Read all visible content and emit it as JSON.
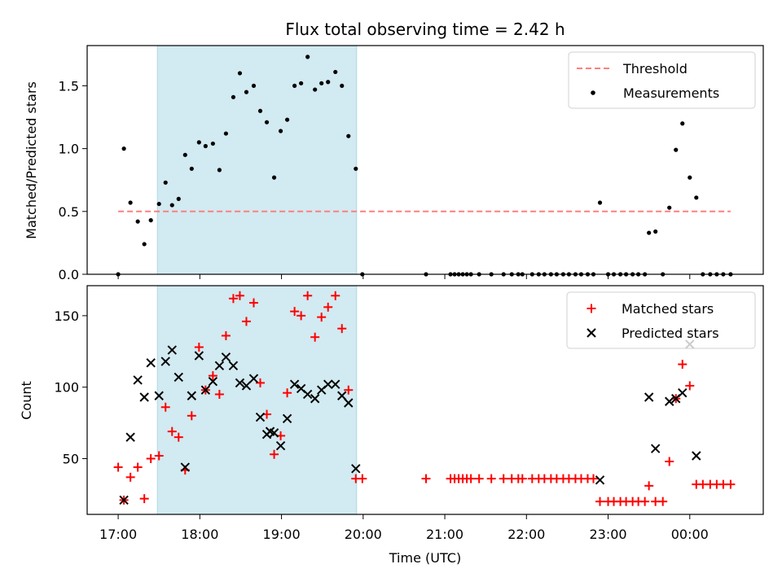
{
  "title": "Flux total observing time = 2.42 h",
  "colors": {
    "threshold": "#ff7f7f",
    "measurement": "#000000",
    "matched": "#ff0000",
    "predicted": "#000000",
    "span": "#add8e6"
  },
  "chart_data": [
    {
      "type": "scatter",
      "ylabel": "Matched/Predicted stars",
      "xlim": [
        16.62,
        24.9
      ],
      "ylim": [
        0,
        1.82
      ],
      "yticks": [
        0.0,
        0.5,
        1.0,
        1.5
      ],
      "ytick_labels": [
        "0.0",
        "0.5",
        "1.0",
        "1.5"
      ],
      "highlight_span": [
        17.48,
        19.92
      ],
      "threshold": {
        "label": "Threshold",
        "y": 0.5,
        "x": [
          17.0,
          24.5
        ]
      },
      "legend": [
        "Threshold",
        "Measurements"
      ],
      "series": [
        {
          "name": "Measurements",
          "x": [
            17.0,
            17.07,
            17.15,
            17.24,
            17.32,
            17.4,
            17.5,
            17.58,
            17.66,
            17.74,
            17.82,
            17.9,
            17.99,
            18.07,
            18.16,
            18.24,
            18.32,
            18.41,
            18.49,
            18.57,
            18.66,
            18.74,
            18.82,
            18.91,
            18.99,
            19.07,
            19.16,
            19.24,
            19.32,
            19.41,
            19.49,
            19.57,
            19.66,
            19.74,
            19.82,
            19.91,
            19.99,
            20.77,
            21.07,
            21.12,
            21.17,
            21.22,
            21.27,
            21.32,
            21.42,
            21.57,
            21.72,
            21.82,
            21.9,
            21.95,
            22.07,
            22.15,
            22.22,
            22.3,
            22.37,
            22.45,
            22.52,
            22.6,
            22.67,
            22.75,
            22.82,
            22.9,
            23.0,
            23.07,
            23.15,
            23.22,
            23.3,
            23.37,
            23.45,
            23.5,
            23.58,
            23.67,
            23.75,
            23.83,
            23.91,
            24.0,
            24.08,
            24.16,
            24.25,
            24.33,
            24.41,
            24.5
          ],
          "y": [
            0.0,
            1.0,
            0.57,
            0.42,
            0.24,
            0.43,
            0.56,
            0.73,
            0.55,
            0.6,
            0.95,
            0.84,
            1.05,
            1.02,
            1.04,
            0.83,
            1.12,
            1.41,
            1.6,
            1.45,
            1.5,
            1.3,
            1.21,
            0.77,
            1.14,
            1.23,
            1.5,
            1.52,
            1.73,
            1.47,
            1.52,
            1.53,
            1.61,
            1.5,
            1.1,
            0.84,
            0.0,
            0.0,
            0.0,
            0.0,
            0.0,
            0.0,
            0.0,
            0.0,
            0.0,
            0.0,
            0.0,
            0.0,
            0.0,
            0.0,
            0.0,
            0.0,
            0.0,
            0.0,
            0.0,
            0.0,
            0.0,
            0.0,
            0.0,
            0.0,
            0.0,
            0.57,
            0.0,
            0.0,
            0.0,
            0.0,
            0.0,
            0.0,
            0.0,
            0.33,
            0.34,
            0.0,
            0.53,
            0.99,
            1.2,
            0.77,
            0.61,
            0.0,
            0.0,
            0.0,
            0.0,
            0.0
          ]
        }
      ]
    },
    {
      "type": "scatter",
      "xlabel": "Time (UTC)",
      "ylabel": "Count",
      "xlim": [
        16.62,
        24.9
      ],
      "ylim": [
        11,
        171
      ],
      "yticks": [
        50,
        100,
        150
      ],
      "ytick_labels": [
        "50",
        "100",
        "150"
      ],
      "xticks": [
        17,
        18,
        19,
        20,
        21,
        22,
        23,
        24
      ],
      "xtick_labels": [
        "17:00",
        "18:00",
        "19:00",
        "20:00",
        "21:00",
        "22:00",
        "23:00",
        "00:00"
      ],
      "highlight_span": [
        17.48,
        19.92
      ],
      "legend": [
        "Matched stars",
        "Predicted stars"
      ],
      "series": [
        {
          "name": "Matched stars",
          "x": [
            17.0,
            17.07,
            17.15,
            17.24,
            17.32,
            17.4,
            17.5,
            17.58,
            17.66,
            17.74,
            17.82,
            17.9,
            17.99,
            18.07,
            18.16,
            18.24,
            18.32,
            18.41,
            18.49,
            18.57,
            18.66,
            18.74,
            18.82,
            18.91,
            18.99,
            19.07,
            19.16,
            19.24,
            19.32,
            19.41,
            19.49,
            19.57,
            19.66,
            19.74,
            19.82,
            19.91,
            19.99,
            20.77,
            21.07,
            21.12,
            21.17,
            21.22,
            21.27,
            21.32,
            21.42,
            21.57,
            21.72,
            21.82,
            21.9,
            21.95,
            22.07,
            22.15,
            22.22,
            22.3,
            22.37,
            22.45,
            22.52,
            22.6,
            22.67,
            22.75,
            22.82,
            22.9,
            23.0,
            23.07,
            23.15,
            23.22,
            23.3,
            23.37,
            23.45,
            23.5,
            23.58,
            23.67,
            23.75,
            23.83,
            23.91,
            24.0,
            24.08,
            24.16,
            24.25,
            24.33,
            24.41,
            24.5
          ],
          "y": [
            44,
            21,
            37,
            44,
            22,
            50,
            52,
            86,
            69,
            65,
            42,
            80,
            128,
            98,
            108,
            95,
            136,
            162,
            164,
            146,
            159,
            103,
            81,
            53,
            66,
            96,
            153,
            150,
            164,
            135,
            149,
            156,
            164,
            141,
            98,
            36,
            36,
            36,
            36,
            36,
            36,
            36,
            36,
            36,
            36,
            36,
            36,
            36,
            36,
            36,
            36,
            36,
            36,
            36,
            36,
            36,
            36,
            36,
            36,
            36,
            36,
            20,
            20,
            20,
            20,
            20,
            20,
            20,
            20,
            31,
            20,
            20,
            48,
            92,
            116,
            101,
            32,
            32,
            32,
            32,
            32,
            32
          ]
        },
        {
          "name": "Predicted stars",
          "x": [
            17.07,
            17.15,
            17.24,
            17.32,
            17.4,
            17.5,
            17.58,
            17.66,
            17.74,
            17.82,
            17.9,
            17.99,
            18.07,
            18.16,
            18.24,
            18.32,
            18.41,
            18.49,
            18.57,
            18.66,
            18.74,
            18.82,
            18.86,
            18.91,
            18.99,
            19.07,
            19.16,
            19.24,
            19.32,
            19.41,
            19.49,
            19.57,
            19.66,
            19.74,
            19.82,
            19.91,
            22.9,
            23.5,
            23.58,
            23.75,
            23.83,
            23.91,
            24.0,
            24.08
          ],
          "y": [
            21,
            65,
            105,
            93,
            117,
            94,
            118,
            126,
            107,
            44,
            94,
            122,
            98,
            104,
            115,
            121,
            115,
            103,
            101,
            106,
            79,
            67,
            69,
            68,
            59,
            78,
            102,
            99,
            95,
            92,
            98,
            102,
            102,
            94,
            89,
            43,
            35,
            93,
            57,
            90,
            92,
            96,
            130,
            52
          ]
        }
      ]
    }
  ]
}
